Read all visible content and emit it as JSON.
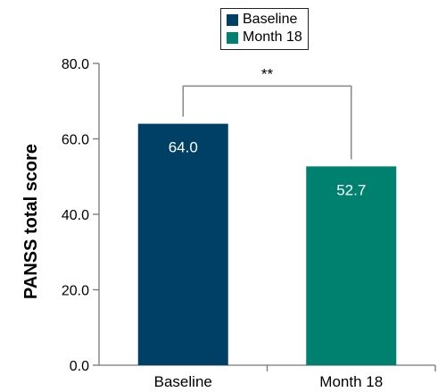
{
  "chart_data": {
    "type": "bar",
    "categories": [
      "Baseline",
      "Month 18"
    ],
    "values": [
      64.0,
      52.7
    ],
    "data_labels": [
      "64.0",
      "52.7"
    ],
    "colors": [
      "#003F66",
      "#00806E"
    ],
    "xlabel": "",
    "ylabel": "PANSS total score",
    "ylim": [
      0,
      80
    ],
    "yticks": [
      "0.0",
      "20.0",
      "40.0",
      "60.0",
      "80.0"
    ],
    "legend": {
      "placement": "top-center",
      "entries": [
        {
          "label": "Baseline",
          "color": "#003F66"
        },
        {
          "label": "Month 18",
          "color": "#00806E"
        }
      ]
    },
    "annotation": {
      "text": "**",
      "type": "significance-bracket"
    },
    "grid": false
  }
}
